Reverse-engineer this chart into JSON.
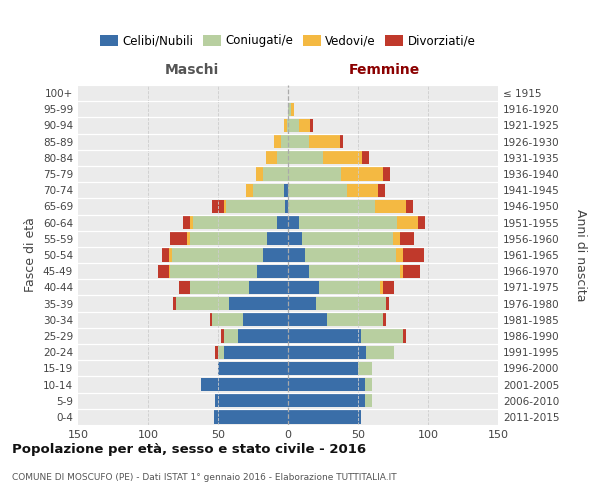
{
  "age_groups": [
    "0-4",
    "5-9",
    "10-14",
    "15-19",
    "20-24",
    "25-29",
    "30-34",
    "35-39",
    "40-44",
    "45-49",
    "50-54",
    "55-59",
    "60-64",
    "65-69",
    "70-74",
    "75-79",
    "80-84",
    "85-89",
    "90-94",
    "95-99",
    "100+"
  ],
  "birth_years": [
    "2011-2015",
    "2006-2010",
    "2001-2005",
    "1996-2000",
    "1991-1995",
    "1986-1990",
    "1981-1985",
    "1976-1980",
    "1971-1975",
    "1966-1970",
    "1961-1965",
    "1956-1960",
    "1951-1955",
    "1946-1950",
    "1941-1945",
    "1936-1940",
    "1931-1935",
    "1926-1930",
    "1921-1925",
    "1916-1920",
    "≤ 1915"
  ],
  "colors": {
    "celibi": "#3a6ea8",
    "coniugati": "#b8cfa0",
    "vedovi": "#f4b942",
    "divorziati": "#c0392b"
  },
  "males": {
    "celibi": [
      53,
      52,
      62,
      50,
      46,
      36,
      32,
      42,
      28,
      22,
      18,
      15,
      8,
      2,
      3,
      0,
      0,
      0,
      0,
      0,
      0
    ],
    "coniugati": [
      0,
      0,
      0,
      0,
      4,
      10,
      22,
      38,
      42,
      62,
      65,
      55,
      60,
      42,
      22,
      18,
      8,
      5,
      1,
      0,
      0
    ],
    "vedovi": [
      0,
      0,
      0,
      0,
      0,
      0,
      0,
      0,
      0,
      1,
      2,
      2,
      2,
      2,
      5,
      5,
      8,
      5,
      2,
      0,
      0
    ],
    "divorziati": [
      0,
      0,
      0,
      0,
      2,
      2,
      2,
      2,
      8,
      8,
      5,
      12,
      5,
      8,
      0,
      0,
      0,
      0,
      0,
      0,
      0
    ]
  },
  "females": {
    "nubili": [
      52,
      55,
      55,
      50,
      56,
      52,
      28,
      20,
      22,
      15,
      12,
      10,
      8,
      0,
      0,
      0,
      0,
      0,
      0,
      0,
      0
    ],
    "coniugate": [
      0,
      5,
      5,
      10,
      20,
      30,
      40,
      50,
      44,
      65,
      65,
      65,
      70,
      62,
      42,
      38,
      25,
      15,
      8,
      2,
      0
    ],
    "vedove": [
      0,
      0,
      0,
      0,
      0,
      0,
      0,
      0,
      2,
      2,
      5,
      5,
      15,
      22,
      22,
      30,
      28,
      22,
      8,
      2,
      0
    ],
    "divorziate": [
      0,
      0,
      0,
      0,
      0,
      2,
      2,
      2,
      8,
      12,
      15,
      10,
      5,
      5,
      5,
      5,
      5,
      2,
      2,
      0,
      0
    ]
  },
  "xlim": 150,
  "title": "Popolazione per età, sesso e stato civile - 2016",
  "subtitle": "COMUNE DI MOSCUFO (PE) - Dati ISTAT 1° gennaio 2016 - Elaborazione TUTTITALIA.IT",
  "ylabel_left": "Fasce di età",
  "ylabel_right": "Anni di nascita",
  "header_left": "Maschi",
  "header_right": "Femmine",
  "bg_color": "#ebebeb",
  "grid_color": "#cccccc",
  "legend_labels": [
    "Celibi/Nubili",
    "Coniugati/e",
    "Vedovi/e",
    "Divorziati/e"
  ]
}
